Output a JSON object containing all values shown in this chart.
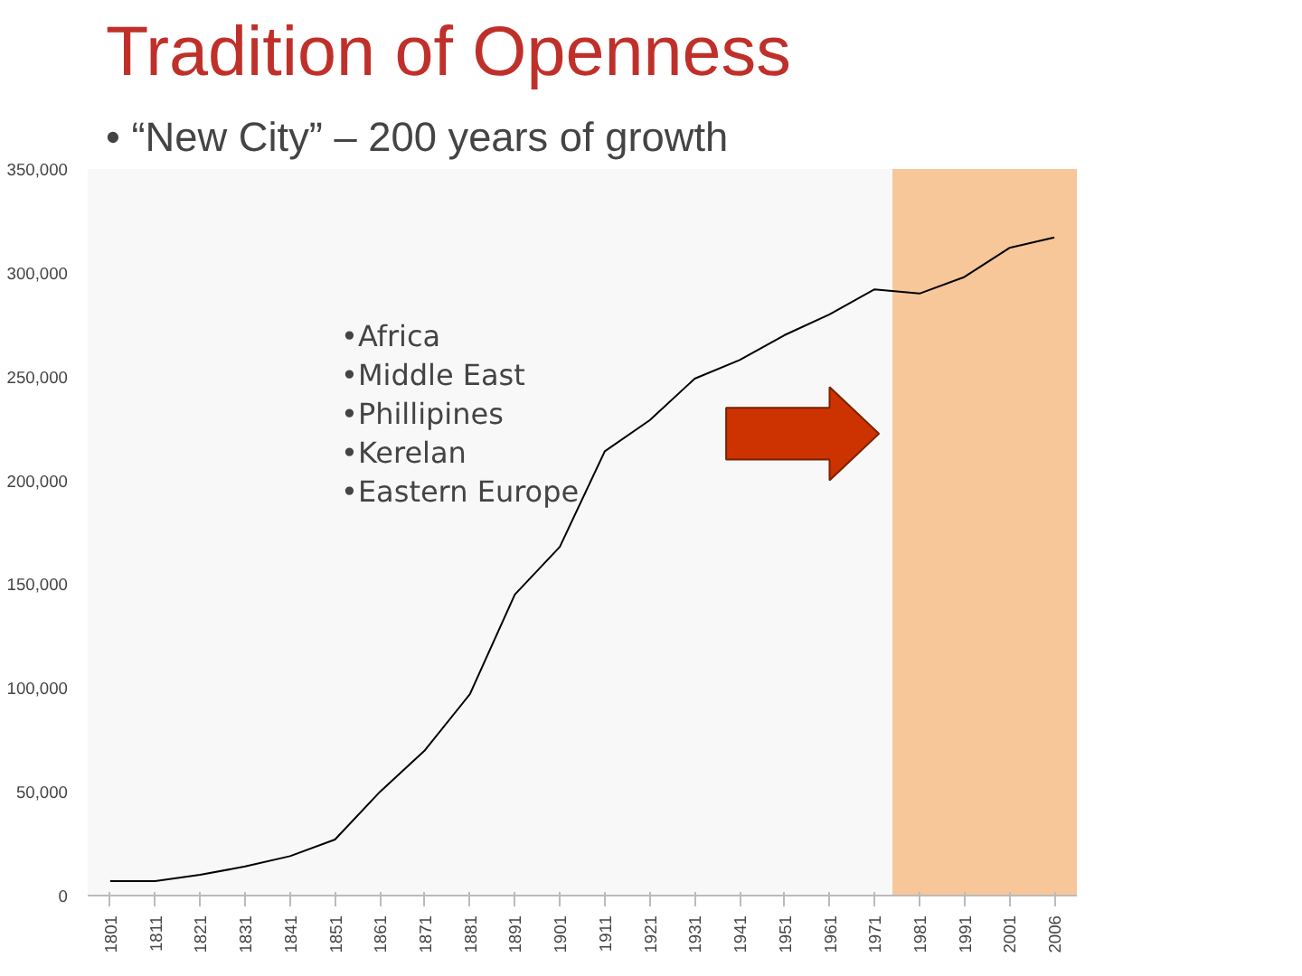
{
  "chart_data": {
    "type": "line",
    "title": "Tradition of Openness",
    "subtitle": "• “New City” – 200 years of growth",
    "categories": [
      "1801",
      "1811",
      "1821",
      "1831",
      "1841",
      "1851",
      "1861",
      "1871",
      "1881",
      "1891",
      "1901",
      "1911",
      "1921",
      "1931",
      "1941",
      "1951",
      "1961",
      "1971",
      "1981",
      "1991",
      "2001",
      "2006"
    ],
    "series": [
      {
        "color": "#000000",
        "values": [
          7000,
          7000,
          10000,
          14000,
          19000,
          27000,
          50000,
          70000,
          97000,
          145000,
          168000,
          214000,
          229000,
          249000,
          258000,
          270000,
          280000,
          292000,
          290000,
          298000,
          312000,
          317000
        ]
      }
    ],
    "ylim": [
      0,
      350000
    ],
    "yticks": [
      {
        "value": 0,
        "label": "0"
      },
      {
        "value": 50000,
        "label": "50,000"
      },
      {
        "value": 100000,
        "label": "100,000"
      },
      {
        "value": 150000,
        "label": "150,000"
      },
      {
        "value": 200000,
        "label": "200,000"
      },
      {
        "value": 250000,
        "label": "250,000"
      },
      {
        "value": 300000,
        "label": "300,000"
      },
      {
        "value": 350000,
        "label": "350,000"
      }
    ],
    "bands": [
      {
        "axis": "x",
        "from": "1981",
        "to": "2006",
        "color": "#f6c08e"
      }
    ],
    "annotations": [
      "•Africa",
      "•Middle East",
      "•Phillipines",
      "•Kerelan",
      "•Eastern Europe"
    ],
    "grid": false
  }
}
